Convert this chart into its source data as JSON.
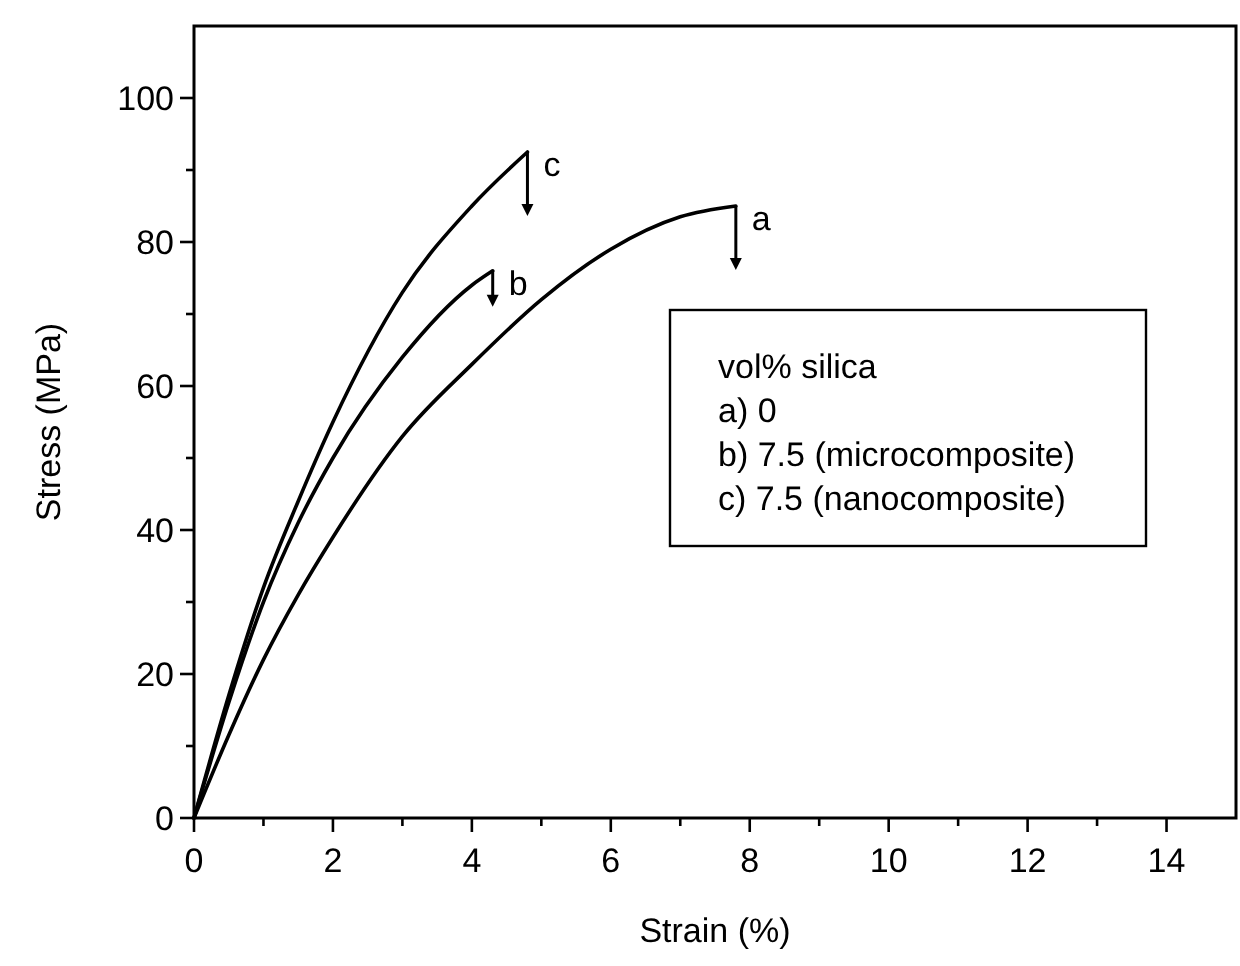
{
  "chart_data": {
    "type": "line",
    "xlabel": "Strain (%)",
    "ylabel": "Stress (MPa)",
    "xlim": [
      0,
      15
    ],
    "ylim": [
      0,
      110
    ],
    "xticks": [
      0,
      {
        "value": 1,
        "label": null
      },
      2,
      {
        "value": 3,
        "label": null
      },
      4,
      {
        "value": 5,
        "label": null
      },
      6,
      {
        "value": 7,
        "label": null
      },
      8,
      {
        "value": 9,
        "label": null
      },
      10,
      {
        "value": 11,
        "label": null
      },
      12,
      {
        "value": 13,
        "label": null
      },
      14
    ],
    "yticks": [
      0,
      {
        "value": 10,
        "label": null
      },
      20,
      {
        "value": 30,
        "label": null
      },
      40,
      {
        "value": 50,
        "label": null
      },
      60,
      {
        "value": 70,
        "label": null
      },
      80,
      {
        "value": 90,
        "label": null
      },
      100
    ],
    "grid": false,
    "legend": "top",
    "marker": "none",
    "line_style": "solid",
    "annotations": [
      "vol% silica",
      "a) 0",
      "b) 7.5 (microcomposite)",
      "c) 7.5 (nanocomposite)"
    ],
    "series": [
      {
        "name": "a",
        "color": "#000000",
        "x": [
          0,
          0.5,
          1,
          1.5,
          2,
          3,
          4,
          5,
          6,
          7,
          7.8
        ],
        "values": [
          0,
          11.5,
          22,
          31,
          39,
          53,
          63,
          72,
          79,
          83.5,
          85
        ]
      },
      {
        "name": "b",
        "color": "#000000",
        "x": [
          0,
          0.5,
          1,
          1.5,
          2,
          3,
          4,
          4.3
        ],
        "values": [
          0,
          16,
          30,
          41,
          50,
          64,
          74,
          76
        ]
      },
      {
        "name": "c",
        "color": "#000000",
        "x": [
          0,
          0.5,
          1,
          1.5,
          2,
          3,
          4,
          4.8
        ],
        "values": [
          0,
          17,
          32,
          44,
          55,
          73,
          85,
          92.5
        ]
      }
    ]
  }
}
